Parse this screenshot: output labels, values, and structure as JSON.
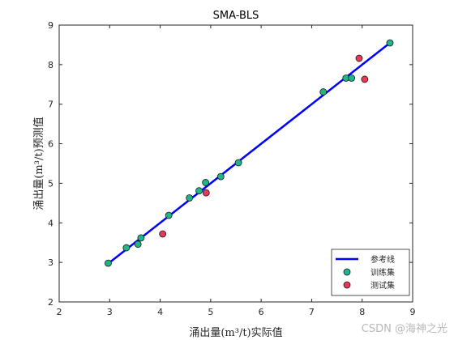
{
  "chart_data": {
    "type": "scatter",
    "title": "SMA-BLS",
    "xlabel": "涌出量(m³/t)实际值",
    "ylabel": "涌出量(m³/t)预测值",
    "xlim": [
      2,
      9
    ],
    "ylim": [
      2,
      9
    ],
    "xticks": [
      "2",
      "3",
      "4",
      "5",
      "6",
      "7",
      "8",
      "9"
    ],
    "yticks": [
      "2",
      "3",
      "4",
      "5",
      "6",
      "7",
      "8",
      "9"
    ],
    "grid": false,
    "legend_position": "bottom-right",
    "reference_line": {
      "name": "参考线",
      "color": "#0000ff",
      "x": [
        2.97,
        8.55
      ],
      "y": [
        2.97,
        8.55
      ]
    },
    "series": [
      {
        "name": "训练集",
        "color": "#1fb58a",
        "points": [
          [
            2.97,
            2.98
          ],
          [
            3.33,
            3.37
          ],
          [
            3.56,
            3.46
          ],
          [
            3.62,
            3.62
          ],
          [
            4.17,
            4.19
          ],
          [
            4.58,
            4.63
          ],
          [
            4.77,
            4.81
          ],
          [
            4.9,
            5.02
          ],
          [
            5.2,
            5.17
          ],
          [
            5.55,
            5.52
          ],
          [
            7.23,
            7.31
          ],
          [
            7.68,
            7.66
          ],
          [
            7.79,
            7.66
          ],
          [
            8.55,
            8.55
          ]
        ]
      },
      {
        "name": "测试集",
        "color": "#e8375a",
        "points": [
          [
            4.05,
            3.72
          ],
          [
            4.91,
            4.76
          ],
          [
            7.94,
            8.16
          ],
          [
            8.05,
            7.63
          ]
        ]
      }
    ]
  },
  "watermark": "CSDN @海神之光"
}
